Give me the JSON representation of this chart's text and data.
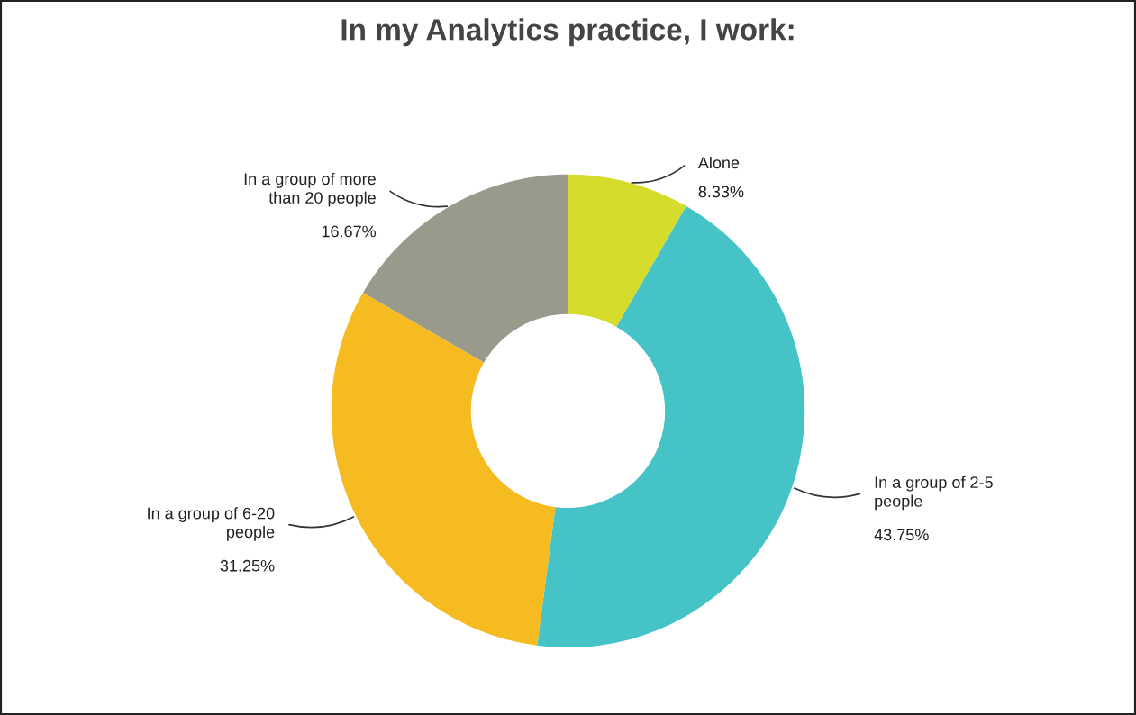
{
  "chart_data": {
    "type": "donut",
    "title": "In my Analytics practice, I work:",
    "categories": [
      "Alone",
      "In a group of 2-5\npeople",
      "In a group of 6-20\npeople",
      "In a group of more\nthan 20 people"
    ],
    "values": [
      8.33,
      43.75,
      31.25,
      16.67
    ],
    "value_labels": [
      "8.33%",
      "43.75%",
      "31.25%",
      "16.67%"
    ],
    "colors": [
      "#d6dc2c",
      "#45c3c6",
      "#f6bb21",
      "#9a9a8c"
    ],
    "legend": false
  }
}
